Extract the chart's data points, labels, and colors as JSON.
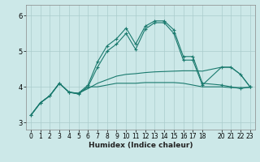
{
  "xlabel": "Humidex (Indice chaleur)",
  "bg_color": "#cce8e8",
  "grid_color": "#aacccc",
  "line_color": "#1a7a6e",
  "xlim": [
    -0.5,
    23.5
  ],
  "ylim": [
    2.8,
    6.3
  ],
  "yticks": [
    3,
    4,
    5,
    6
  ],
  "xticks": [
    0,
    1,
    2,
    3,
    4,
    5,
    6,
    7,
    8,
    9,
    10,
    11,
    12,
    13,
    14,
    15,
    16,
    17,
    18,
    20,
    21,
    22,
    23
  ],
  "series": [
    {
      "x": [
        0,
        1,
        2,
        3,
        4,
        5,
        6,
        7,
        8,
        9,
        10,
        11,
        12,
        13,
        14,
        15,
        16,
        17,
        18,
        20,
        21,
        22,
        23
      ],
      "y": [
        3.2,
        3.55,
        3.75,
        4.1,
        3.85,
        3.82,
        4.05,
        4.7,
        5.15,
        5.35,
        5.65,
        5.2,
        5.7,
        5.85,
        5.85,
        5.6,
        4.85,
        4.85,
        4.1,
        4.05,
        4.0,
        3.95,
        4.0
      ],
      "marker": true
    },
    {
      "x": [
        0,
        1,
        2,
        3,
        4,
        5,
        6,
        7,
        8,
        9,
        10,
        11,
        12,
        13,
        14,
        15,
        16,
        17,
        18,
        20,
        21,
        22,
        23
      ],
      "y": [
        3.2,
        3.55,
        3.75,
        4.1,
        3.85,
        3.8,
        4.0,
        4.55,
        5.0,
        5.2,
        5.5,
        5.05,
        5.62,
        5.8,
        5.8,
        5.5,
        4.75,
        4.75,
        4.05,
        4.55,
        4.55,
        4.35,
        4.0
      ],
      "marker": true
    },
    {
      "x": [
        0,
        1,
        2,
        3,
        4,
        5,
        6,
        7,
        8,
        9,
        10,
        11,
        12,
        13,
        14,
        15,
        16,
        17,
        18,
        20,
        21,
        22,
        23
      ],
      "y": [
        3.2,
        3.55,
        3.75,
        4.1,
        3.85,
        3.8,
        4.0,
        4.0,
        4.05,
        4.1,
        4.1,
        4.1,
        4.12,
        4.12,
        4.12,
        4.12,
        4.1,
        4.05,
        4.0,
        4.0,
        3.98,
        3.98,
        3.98
      ],
      "marker": false
    },
    {
      "x": [
        0,
        1,
        2,
        3,
        4,
        5,
        6,
        7,
        8,
        9,
        10,
        11,
        12,
        13,
        14,
        15,
        16,
        17,
        18,
        20,
        21,
        22,
        23
      ],
      "y": [
        3.2,
        3.55,
        3.75,
        4.1,
        3.85,
        3.82,
        3.95,
        4.1,
        4.2,
        4.3,
        4.35,
        4.37,
        4.4,
        4.42,
        4.43,
        4.44,
        4.45,
        4.45,
        4.44,
        4.55,
        4.55,
        4.35,
        4.0
      ],
      "marker": false
    }
  ]
}
